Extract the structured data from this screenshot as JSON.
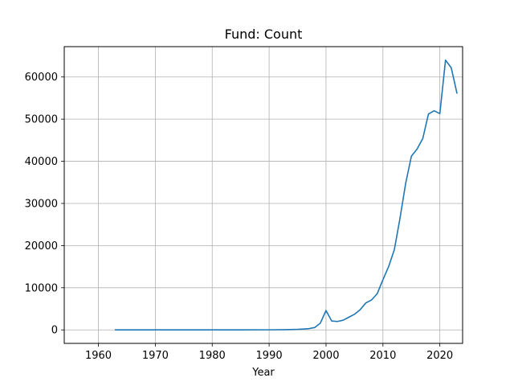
{
  "chart_data": {
    "type": "line",
    "title": "Fund: Count",
    "xlabel": "Year",
    "ylabel": "",
    "xlim": [
      1954,
      2024
    ],
    "ylim": [
      -3200,
      67200
    ],
    "x_ticks": [
      1960,
      1970,
      1980,
      1990,
      2000,
      2010,
      2020
    ],
    "y_ticks": [
      0,
      10000,
      20000,
      30000,
      40000,
      50000,
      60000
    ],
    "grid": true,
    "legend": "none",
    "series": [
      {
        "color": "#1f77b4",
        "x": [
          1963,
          1965,
          1970,
          1975,
          1980,
          1985,
          1990,
          1993,
          1995,
          1996,
          1997,
          1998,
          1999,
          2000,
          2001,
          2002,
          2003,
          2004,
          2005,
          2006,
          2007,
          2008,
          2009,
          2010,
          2011,
          2012,
          2013,
          2014,
          2015,
          2016,
          2017,
          2018,
          2019,
          2020,
          2021,
          2022,
          2023
        ],
        "y": [
          0,
          0,
          0,
          0,
          0,
          0,
          20,
          50,
          120,
          200,
          300,
          550,
          1600,
          4600,
          2100,
          2000,
          2300,
          3000,
          3700,
          4800,
          6400,
          7100,
          8600,
          11900,
          15000,
          19000,
          26500,
          34800,
          41200,
          42900,
          45400,
          51200,
          52000,
          51300,
          64000,
          62200,
          56200
        ]
      }
    ]
  },
  "colors": {
    "line": "#1f77b4",
    "grid": "#b0b0b0",
    "axis": "#000000",
    "background": "#ffffff"
  }
}
